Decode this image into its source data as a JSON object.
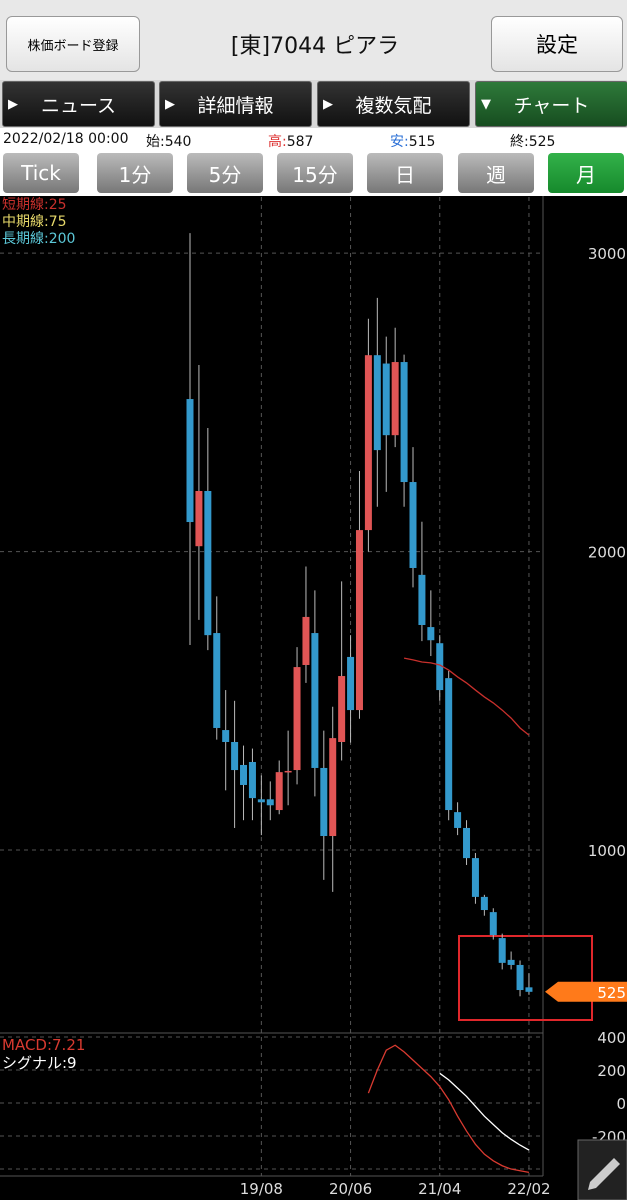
{
  "header": {
    "register_button": "株価ボード登録",
    "title": "[東]7044 ピアラ",
    "settings_button": "設定"
  },
  "tabs": [
    "ニュース",
    "詳細情報",
    "複数気配",
    "チャート"
  ],
  "info": {
    "datetime": "2022/02/18 00:00",
    "items": [
      {
        "label": "始:",
        "value": "540"
      },
      {
        "label": "高:",
        "value": "587"
      },
      {
        "label": "安:",
        "value": "515"
      },
      {
        "label": "終:",
        "value": "525"
      }
    ]
  },
  "periods": [
    "Tick",
    "1分",
    "5分",
    "15分",
    "日",
    "週",
    "月"
  ],
  "chart_data": [
    {
      "type": "candlestick",
      "up_color": "#e05555",
      "down_color": "#3399cc",
      "grid": true,
      "categories": [
        null,
        null,
        null,
        null,
        null,
        null,
        null,
        null,
        "19/08",
        null,
        null,
        null,
        null,
        null,
        null,
        null,
        null,
        null,
        "20/06",
        null,
        null,
        null,
        null,
        null,
        null,
        null,
        null,
        null,
        "21/04",
        null,
        null,
        null,
        null,
        null,
        null,
        null,
        null,
        null,
        "22/02"
      ],
      "open": [
        2511,
        2018,
        2203,
        1727,
        1402,
        1362,
        1285,
        1295,
        1170,
        1170,
        1134,
        1260,
        1268,
        1620,
        1727,
        1275,
        1047,
        1362,
        1647,
        1469,
        2072,
        2658,
        2630,
        2390,
        2635,
        2233,
        1922,
        1747,
        1693,
        1576,
        1127,
        1074,
        973,
        843,
        792,
        705,
        632,
        615,
        540
      ],
      "high": [
        3067,
        2625,
        2414,
        1850,
        1536,
        1500,
        1350,
        1340,
        1250,
        1230,
        1300,
        1400,
        1680,
        1950,
        1870,
        1400,
        1480,
        1900,
        1720,
        2270,
        2780,
        2850,
        2720,
        2750,
        2660,
        2350,
        2100,
        1870,
        1720,
        1600,
        1160,
        1100,
        990,
        850,
        805,
        720,
        660,
        630,
        587
      ],
      "low": [
        1687,
        1771,
        1670,
        1370,
        1200,
        1074,
        1100,
        1100,
        1050,
        1100,
        1120,
        1150,
        1220,
        1560,
        1180,
        900,
        860,
        1300,
        1360,
        1440,
        2000,
        2150,
        2200,
        2350,
        2150,
        1880,
        1700,
        1650,
        1500,
        1100,
        1050,
        950,
        820,
        780,
        700,
        600,
        600,
        510,
        515
      ],
      "close": [
        2099,
        2203,
        1720,
        1409,
        1362,
        1268,
        1218,
        1174,
        1160,
        1150,
        1261,
        1265,
        1613,
        1781,
        1275,
        1047,
        1375,
        1583,
        1469,
        2072,
        2658,
        2340,
        2390,
        2635,
        2233,
        1945,
        1754,
        1703,
        1536,
        1134,
        1074,
        973,
        843,
        799,
        715,
        622,
        615,
        531,
        525
      ],
      "series": [
        {
          "name": "短期線:25",
          "color": "#c8302c",
          "values": [
            null,
            null,
            null,
            null,
            null,
            null,
            null,
            null,
            null,
            null,
            null,
            null,
            null,
            null,
            null,
            null,
            null,
            null,
            null,
            null,
            null,
            null,
            null,
            null,
            1643,
            1637,
            1630,
            1627,
            1620,
            1603,
            1580,
            1560,
            1536,
            1513,
            1493,
            1469,
            1442,
            1409,
            1385
          ]
        },
        {
          "name": "中期線:75",
          "color": "#e6d86a",
          "values": [
            null,
            null,
            null,
            null,
            null,
            null,
            null,
            null,
            null,
            null,
            null,
            null,
            null,
            null,
            null,
            null,
            null,
            null,
            null,
            null,
            null,
            null,
            null,
            null,
            null,
            null,
            null,
            null,
            null,
            null,
            null,
            null,
            null,
            null,
            null,
            null,
            null,
            null,
            null
          ]
        },
        {
          "name": "長期線:200",
          "color": "#5cc8d8",
          "values": [
            null,
            null,
            null,
            null,
            null,
            null,
            null,
            null,
            null,
            null,
            null,
            null,
            null,
            null,
            null,
            null,
            null,
            null,
            null,
            null,
            null,
            null,
            null,
            null,
            null,
            null,
            null,
            null,
            null,
            null,
            null,
            null,
            null,
            null,
            null,
            null,
            null,
            null,
            null
          ]
        }
      ],
      "ylim": [
        387,
        3188
      ],
      "yticks": [
        1000,
        2000,
        3000
      ],
      "last_price": 525
    },
    {
      "type": "line",
      "ylim": [
        -436,
        412
      ],
      "yticks": [
        -400,
        -200,
        0,
        200,
        400
      ],
      "series": [
        {
          "name": "MACD:7.21",
          "color": "#d83a30",
          "values": [
            null,
            null,
            null,
            null,
            null,
            null,
            null,
            null,
            null,
            null,
            null,
            null,
            null,
            null,
            null,
            null,
            null,
            null,
            null,
            null,
            60,
            200,
            320,
            350,
            310,
            260,
            210,
            160,
            100,
            20,
            -80,
            -170,
            -250,
            -310,
            -350,
            -380,
            -400,
            -410,
            -420
          ]
        },
        {
          "name": "シグナル:9",
          "color": "#ffffff",
          "values": [
            null,
            null,
            null,
            null,
            null,
            null,
            null,
            null,
            null,
            null,
            null,
            null,
            null,
            null,
            null,
            null,
            null,
            null,
            null,
            null,
            null,
            null,
            null,
            null,
            null,
            null,
            null,
            null,
            180,
            140,
            90,
            40,
            -20,
            -80,
            -130,
            -180,
            -220,
            -255,
            -285
          ]
        }
      ]
    }
  ]
}
